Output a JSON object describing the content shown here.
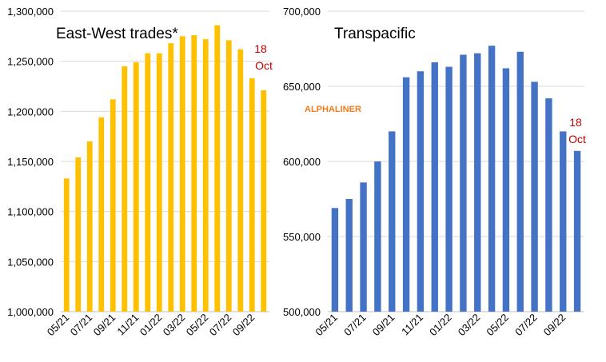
{
  "brand_label": "ALPHALINER",
  "chart_data": [
    {
      "type": "bar",
      "title": "East-West trades*",
      "annotation": "18 Oct",
      "bar_color": "#ffc000",
      "categories": [
        "05/21",
        "06/21",
        "07/21",
        "08/21",
        "09/21",
        "10/21",
        "11/21",
        "12/21",
        "01/22",
        "02/22",
        "03/22",
        "04/22",
        "05/22",
        "06/22",
        "07/22",
        "08/22",
        "09/22",
        "10/22"
      ],
      "x_tick_labels": [
        "05/21",
        "07/21",
        "09/21",
        "11/21",
        "01/22",
        "03/22",
        "05/22",
        "07/22",
        "09/22"
      ],
      "values": [
        1133000,
        1154000,
        1170000,
        1194000,
        1212000,
        1245000,
        1249000,
        1258000,
        1258000,
        1268000,
        1275000,
        1276000,
        1272000,
        1286000,
        1271000,
        1262000,
        1233000,
        1221000
      ],
      "ylim": [
        1000000,
        1300000
      ],
      "y_ticks": [
        "1,000,000",
        "1,050,000",
        "1,100,000",
        "1,150,000",
        "1,200,000",
        "1,250,000",
        "1,300,000"
      ],
      "grid": true
    },
    {
      "type": "bar",
      "title": "Transpacific",
      "annotation": "18 Oct",
      "bar_color": "#4472c4",
      "categories": [
        "05/21",
        "06/21",
        "07/21",
        "08/21",
        "09/21",
        "10/21",
        "11/21",
        "12/21",
        "01/22",
        "02/22",
        "03/22",
        "04/22",
        "05/22",
        "06/22",
        "07/22",
        "08/22",
        "09/22",
        "10/22"
      ],
      "x_tick_labels": [
        "05/21",
        "07/21",
        "09/21",
        "11/21",
        "01/22",
        "03/22",
        "05/22",
        "07/22",
        "09/22"
      ],
      "values": [
        569000,
        575000,
        586000,
        600000,
        620000,
        656000,
        660000,
        666000,
        663000,
        671000,
        672000,
        677000,
        662000,
        673000,
        653000,
        642000,
        620000,
        607000
      ],
      "ylim": [
        500000,
        700000
      ],
      "y_ticks": [
        "500,000",
        "550,000",
        "600,000",
        "650,000",
        "700,000"
      ],
      "grid": true
    }
  ]
}
